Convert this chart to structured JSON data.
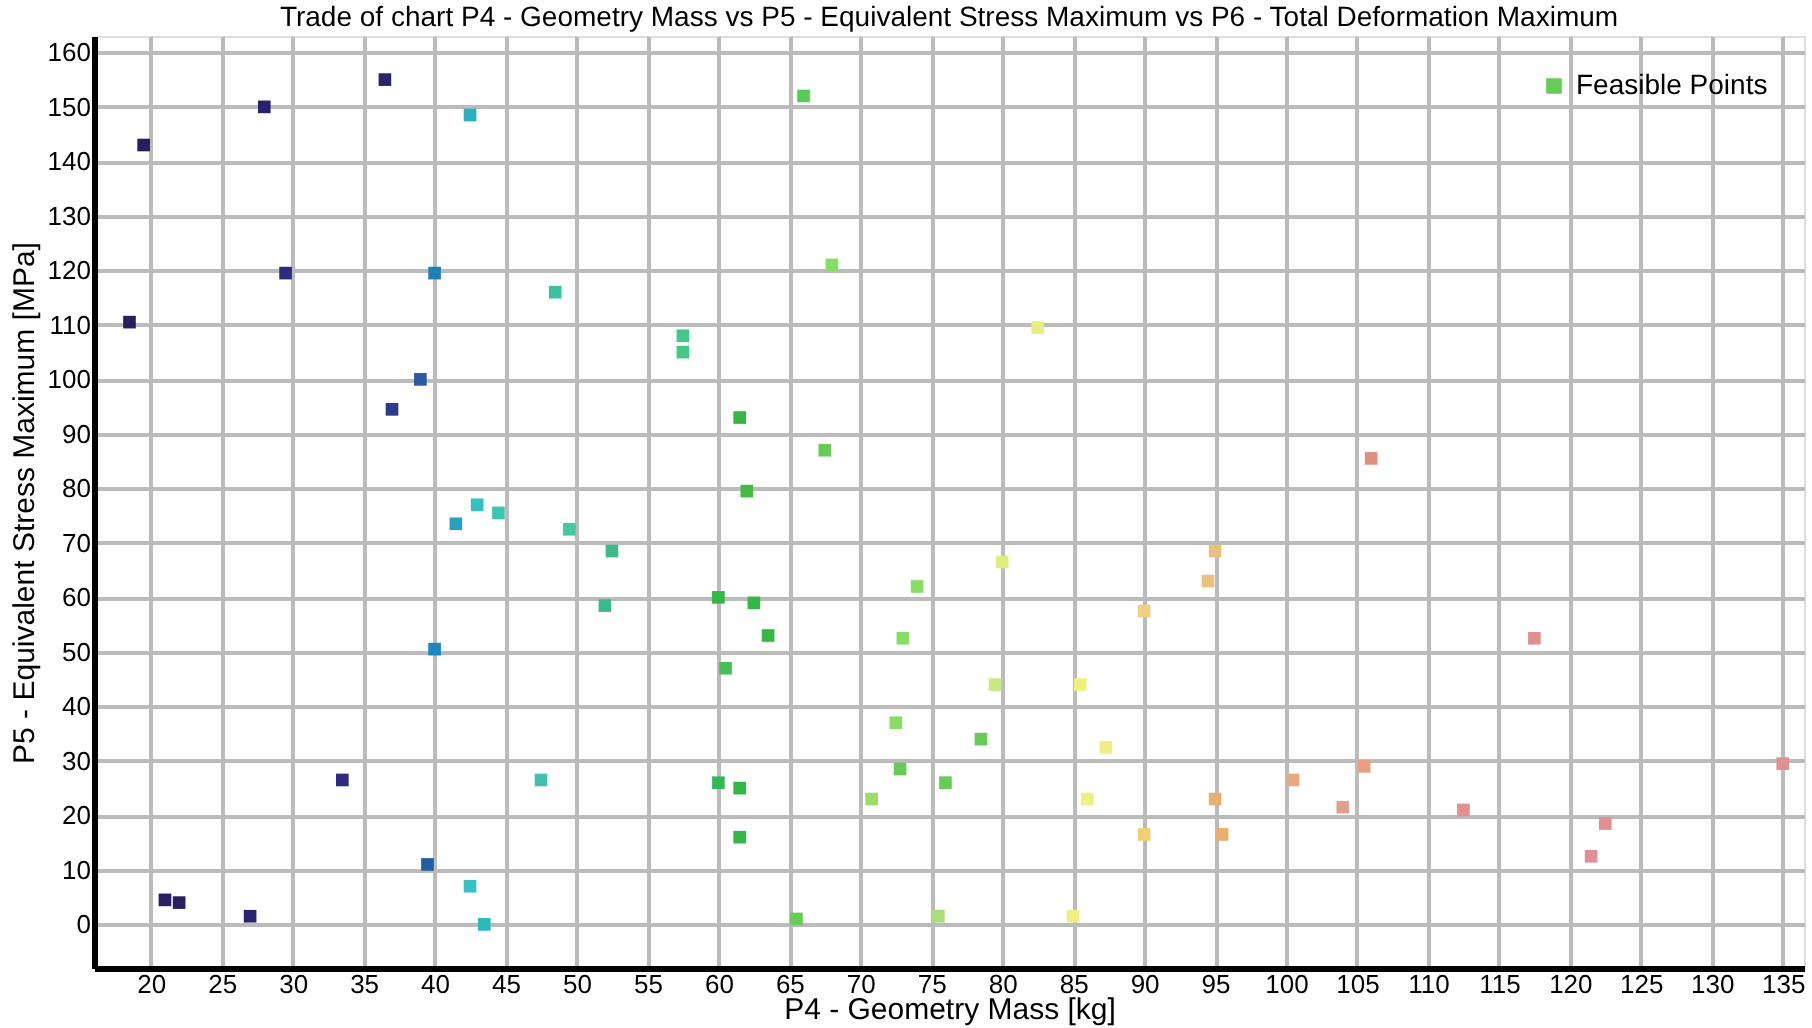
{
  "chart_data": {
    "type": "scatter",
    "title": "Trade of chart P4 - Geometry Mass vs P5 - Equivalent Stress Maximum vs P6 - Total Deformation Maximum",
    "xlabel": "P4 - Geometry Mass [kg]",
    "ylabel": "P5 - Equivalent Stress Maximum [MPa]",
    "xlim": [
      16,
      136.5
    ],
    "ylim": [
      -8,
      163
    ],
    "xticks": [
      20,
      25,
      30,
      35,
      40,
      45,
      50,
      55,
      60,
      65,
      70,
      75,
      80,
      85,
      90,
      95,
      100,
      105,
      110,
      115,
      120,
      125,
      130,
      135
    ],
    "yticks": [
      0,
      10,
      20,
      30,
      40,
      50,
      60,
      70,
      80,
      90,
      100,
      110,
      120,
      130,
      140,
      150,
      160
    ],
    "grid": true,
    "legend": "top right",
    "marker": "square",
    "series": [
      {
        "name": "Feasible Points",
        "color": "#66cc55",
        "x": [
          19.5,
          18.5,
          28,
          29.5,
          36.5,
          37,
          39,
          40,
          42.5,
          48.5,
          57.5,
          57.5,
          61.5,
          67.5,
          62,
          66,
          68,
          82.5,
          106,
          43,
          44.5,
          41.5,
          49.5,
          52.5,
          52,
          40,
          60,
          62.5,
          63.5,
          60.5,
          33.5,
          47.5,
          60,
          61.5,
          61.5,
          39.5,
          42.5,
          43.5,
          21,
          22,
          27,
          65.5,
          74,
          73,
          80,
          79.5,
          85.5,
          72.5,
          78.5,
          87.3,
          72.8,
          76,
          70.8,
          86,
          90,
          95.5,
          95,
          95,
          94.5,
          90,
          117.5,
          100.5,
          105.5,
          104,
          112.5,
          122.5,
          121.5,
          135,
          75.5,
          85
        ],
        "values": [
          143,
          110.5,
          150,
          119.5,
          155,
          94.5,
          100,
          119.5,
          148.5,
          116,
          108,
          105,
          93,
          87,
          79.5,
          152,
          121,
          109.5,
          85.5,
          77,
          75.5,
          73.5,
          72.5,
          68.5,
          58.5,
          50.5,
          60,
          59,
          53,
          47,
          26.5,
          26.5,
          26,
          25,
          16,
          11,
          7,
          0,
          4.5,
          4,
          1.5,
          1,
          62,
          52.5,
          66.5,
          44,
          44,
          37,
          34,
          32.5,
          28.5,
          26,
          23,
          23,
          16.5,
          16.5,
          23,
          68.5,
          63,
          57.5,
          52.5,
          26.5,
          29,
          21.5,
          21,
          18.5,
          12.5,
          29.5,
          1.5,
          1.5
        ],
        "colors": [
          "#2a1f5e",
          "#2a1f5e",
          "#2b2070",
          "#2e2a80",
          "#2a2468",
          "#2e3a8c",
          "#2c5aa0",
          "#1f7fb8",
          "#2ab0c0",
          "#3cc0a0",
          "#44c888",
          "#44c888",
          "#33b844",
          "#66cc55",
          "#44bb44",
          "#55cc55",
          "#88dd66",
          "#e8ee80",
          "#e09080",
          "#33c0c0",
          "#3cc8b0",
          "#2aa0c0",
          "#44c8a0",
          "#3cba88",
          "#3cb890",
          "#1a88c0",
          "#33b844",
          "#33b844",
          "#33b844",
          "#44c055",
          "#2e2a80",
          "#44c0b0",
          "#33b855",
          "#33b844",
          "#33b844",
          "#2060a0",
          "#3cc0c8",
          "#2ab8b8",
          "#2a1f60",
          "#2a1f60",
          "#2a2470",
          "#66cc55",
          "#88dd66",
          "#88dd66",
          "#e0ee80",
          "#c8e880",
          "#f0f080",
          "#88dd66",
          "#66cc55",
          "#f0ee80",
          "#66cc55",
          "#66cc55",
          "#99dd66",
          "#f0f080",
          "#f0d070",
          "#e8b070",
          "#e8b070",
          "#e8c080",
          "#e8c080",
          "#f0d080",
          "#e09090",
          "#e8a880",
          "#e8a080",
          "#e0a090",
          "#e09090",
          "#e09090",
          "#e09090",
          "#e09090",
          "#aadd77",
          "#f0f080"
        ]
      }
    ]
  }
}
